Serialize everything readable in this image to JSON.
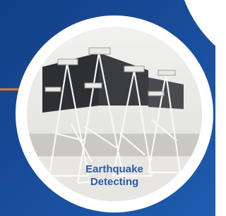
{
  "caption": {
    "lines": [
      "Earthquake",
      "Detecting"
    ]
  }
}
